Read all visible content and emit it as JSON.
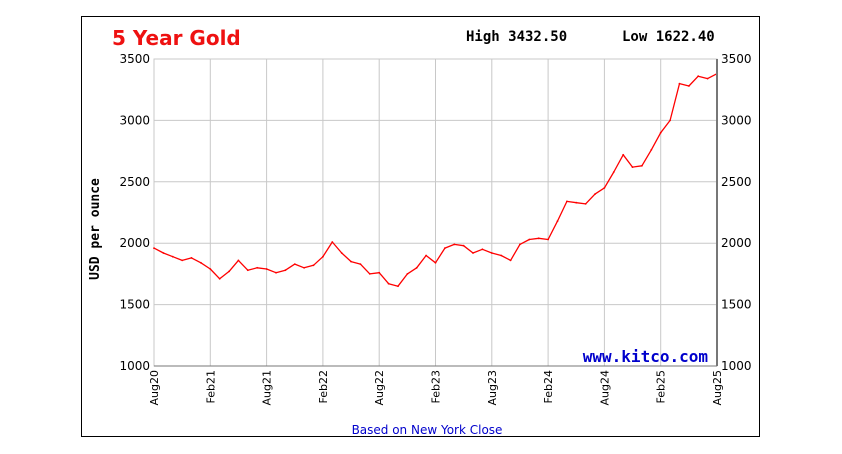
{
  "chart_data": {
    "type": "line",
    "title": "5 Year Gold",
    "high_label": "High 3432.50",
    "low_label": "Low 1622.40",
    "ylabel": "USD per ounce",
    "footer": "Based on New York Close",
    "watermark": "www.kitco.com",
    "ylim": [
      1000,
      3500
    ],
    "yticks": [
      "1000",
      "1500",
      "2000",
      "2500",
      "3000",
      "3500"
    ],
    "xticks": [
      "Aug20",
      "Feb21",
      "Aug21",
      "Feb22",
      "Aug22",
      "Feb23",
      "Aug23",
      "Feb24",
      "Aug24",
      "Feb25",
      "Aug25"
    ],
    "grid": true,
    "line_color": "#ff0000",
    "series": [
      {
        "points": [
          [
            "Aug20",
            1960
          ],
          [
            "Sep20",
            1920
          ],
          [
            "Oct20",
            1890
          ],
          [
            "Nov20",
            1860
          ],
          [
            "Dec20",
            1880
          ],
          [
            "Jan21",
            1840
          ],
          [
            "Feb21",
            1790
          ],
          [
            "Mar21",
            1710
          ],
          [
            "Apr21",
            1770
          ],
          [
            "May21",
            1860
          ],
          [
            "Jun21",
            1780
          ],
          [
            "Jul21",
            1800
          ],
          [
            "Aug21",
            1790
          ],
          [
            "Sep21",
            1760
          ],
          [
            "Oct21",
            1780
          ],
          [
            "Nov21",
            1830
          ],
          [
            "Dec21",
            1800
          ],
          [
            "Jan22",
            1820
          ],
          [
            "Feb22",
            1890
          ],
          [
            "Mar22",
            2010
          ],
          [
            "Apr22",
            1920
          ],
          [
            "May22",
            1850
          ],
          [
            "Jun22",
            1830
          ],
          [
            "Jul22",
            1750
          ],
          [
            "Aug22",
            1760
          ],
          [
            "Sep22",
            1670
          ],
          [
            "Oct22",
            1650
          ],
          [
            "Nov22",
            1750
          ],
          [
            "Dec22",
            1800
          ],
          [
            "Jan23",
            1900
          ],
          [
            "Feb23",
            1840
          ],
          [
            "Mar23",
            1960
          ],
          [
            "Apr23",
            1990
          ],
          [
            "May23",
            1980
          ],
          [
            "Jun23",
            1920
          ],
          [
            "Jul23",
            1950
          ],
          [
            "Aug23",
            1920
          ],
          [
            "Sep23",
            1900
          ],
          [
            "Oct23",
            1860
          ],
          [
            "Nov23",
            1990
          ],
          [
            "Dec23",
            2030
          ],
          [
            "Jan24",
            2040
          ],
          [
            "Feb24",
            2030
          ],
          [
            "Mar24",
            2180
          ],
          [
            "Apr24",
            2340
          ],
          [
            "May24",
            2330
          ],
          [
            "Jun24",
            2320
          ],
          [
            "Jul24",
            2400
          ],
          [
            "Aug24",
            2450
          ],
          [
            "Sep24",
            2580
          ],
          [
            "Oct24",
            2720
          ],
          [
            "Nov24",
            2620
          ],
          [
            "Dec24",
            2630
          ],
          [
            "Jan25",
            2760
          ],
          [
            "Feb25",
            2900
          ],
          [
            "Mar25",
            3000
          ],
          [
            "Apr25",
            3300
          ],
          [
            "May25",
            3280
          ],
          [
            "Jun25",
            3360
          ],
          [
            "Jul25",
            3340
          ],
          [
            "Aug25",
            3380
          ]
        ]
      }
    ]
  }
}
